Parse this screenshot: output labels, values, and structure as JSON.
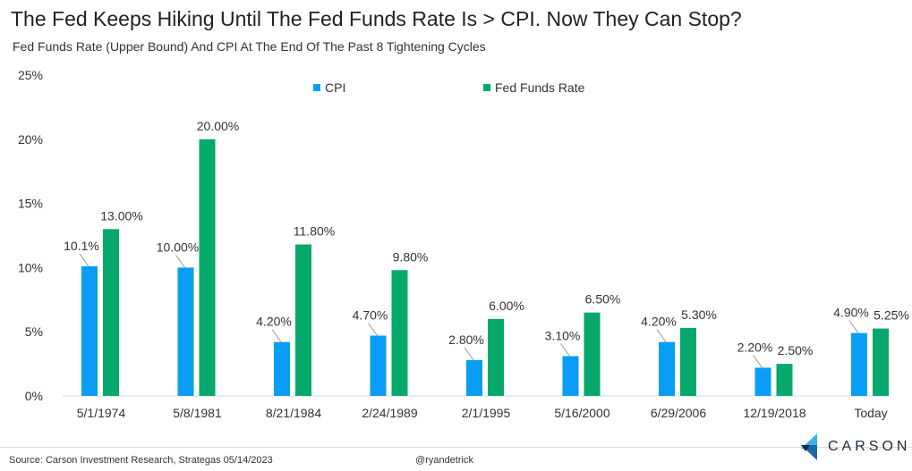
{
  "title": "The Fed Keeps Hiking Until The Fed Funds Rate Is > CPI. Now They Can Stop?",
  "subtitle": "Fed Funds Rate (Upper Bound) And CPI At The End Of The Past 8 Tightening Cycles",
  "footer": {
    "source": "Source: Carson Investment Research, Strategas 05/14/2023",
    "handle": "@ryandetrick",
    "logo_text": "CARSON"
  },
  "colors": {
    "cpi": "#0a9df5",
    "ffr": "#06a86b"
  },
  "chart_data": {
    "type": "bar",
    "title": "The Fed Keeps Hiking Until The Fed Funds Rate Is > CPI. Now They Can Stop?",
    "categories": [
      "5/1/1974",
      "5/8/1981",
      "8/21/1984",
      "2/24/1989",
      "2/1/1995",
      "5/16/2000",
      "6/29/2006",
      "12/19/2018",
      "Today"
    ],
    "series": [
      {
        "name": "CPI",
        "values": [
          10.1,
          10.0,
          4.2,
          4.7,
          2.8,
          3.1,
          4.2,
          2.2,
          4.9
        ],
        "labels": [
          "10.1%",
          "10.00%",
          "4.20%",
          "4.70%",
          "2.80%",
          "3.10%",
          "4.20%",
          "2.20%",
          "4.90%"
        ]
      },
      {
        "name": "Fed Funds Rate",
        "values": [
          13.0,
          20.0,
          11.8,
          9.8,
          6.0,
          6.5,
          5.3,
          2.5,
          5.25
        ],
        "labels": [
          "13.00%",
          "20.00%",
          "11.80%",
          "9.80%",
          "6.00%",
          "6.50%",
          "5.30%",
          "2.50%",
          "5.25%"
        ]
      }
    ],
    "yticks": [
      "0%",
      "5%",
      "10%",
      "15%",
      "20%",
      "25%"
    ],
    "ylim": [
      0,
      25
    ],
    "legend": "top-center",
    "grid": false
  }
}
